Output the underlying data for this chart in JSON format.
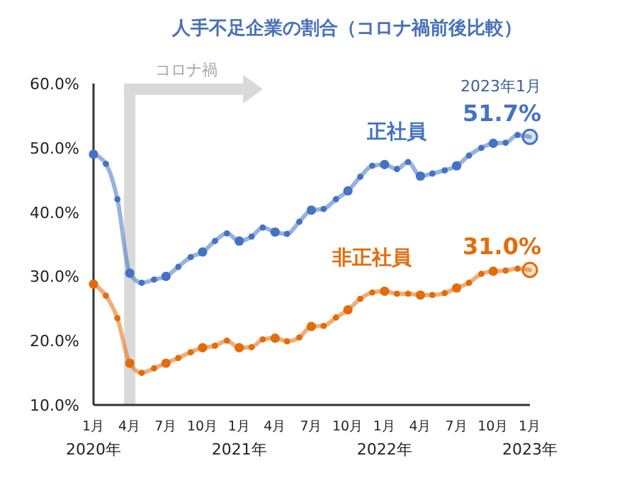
{
  "chart_data": {
    "type": "line",
    "title": "人手不足企業の割合（コロナ禍前後比較）",
    "x": [
      "2020-01",
      "2020-02",
      "2020-03",
      "2020-04",
      "2020-05",
      "2020-06",
      "2020-07",
      "2020-08",
      "2020-09",
      "2020-10",
      "2020-11",
      "2020-12",
      "2021-01",
      "2021-02",
      "2021-03",
      "2021-04",
      "2021-05",
      "2021-06",
      "2021-07",
      "2021-08",
      "2021-09",
      "2021-10",
      "2021-11",
      "2021-12",
      "2022-01",
      "2022-02",
      "2022-03",
      "2022-04",
      "2022-05",
      "2022-06",
      "2022-07",
      "2022-08",
      "2022-09",
      "2022-10",
      "2022-11",
      "2022-12",
      "2023-01"
    ],
    "series": [
      {
        "name": "正社員",
        "color": "#4472c4",
        "values": [
          49.0,
          47.5,
          42,
          30.5,
          29,
          29.5,
          30,
          31.5,
          33,
          33.8,
          35.5,
          36.7,
          35.5,
          36.2,
          37.6,
          36.9,
          36.6,
          38.5,
          40.3,
          40.5,
          42,
          43.3,
          45.5,
          47.2,
          47.4,
          46.7,
          47.8,
          45.6,
          46,
          46.5,
          47.2,
          48.8,
          50,
          50.7,
          50.8,
          52,
          51.7
        ],
        "value_labels": [
          null,
          null,
          null,
          null,
          null,
          null,
          null,
          null,
          null,
          null,
          null,
          null,
          null,
          null,
          null,
          null,
          null,
          null,
          null,
          null,
          null,
          null,
          null,
          null,
          null,
          null,
          null,
          null,
          null,
          null,
          null,
          null,
          null,
          null,
          null,
          null,
          "51.7%"
        ]
      },
      {
        "name": "非正社員",
        "color": "#e36c09",
        "values": [
          28.8,
          27,
          23.5,
          16.5,
          15,
          15.7,
          16.5,
          17.3,
          18.2,
          18.9,
          19.2,
          20,
          18.9,
          19,
          20.2,
          20.4,
          19.9,
          20.5,
          22.2,
          22.3,
          23.6,
          24.8,
          26.5,
          27.5,
          27.7,
          27.3,
          27.3,
          27.1,
          27.1,
          27.4,
          28.2,
          29,
          30.4,
          30.8,
          30.9,
          31.2,
          31.0
        ],
        "value_labels": [
          null,
          null,
          null,
          null,
          null,
          null,
          null,
          null,
          null,
          null,
          null,
          null,
          null,
          null,
          null,
          null,
          null,
          null,
          null,
          null,
          null,
          null,
          null,
          null,
          null,
          null,
          null,
          null,
          null,
          null,
          null,
          null,
          null,
          null,
          null,
          null,
          "31.0%"
        ]
      }
    ],
    "xlim": [
      "2020-01",
      "2023-01"
    ],
    "xticks": [
      {
        "value": "2020-01",
        "label": "1月\n2020年"
      },
      {
        "value": "2020-04",
        "label": "4月"
      },
      {
        "value": "2020-07",
        "label": "7月"
      },
      {
        "value": "2020-10",
        "label": "10月"
      },
      {
        "value": "2021-01",
        "label": "1月\n2021年"
      },
      {
        "value": "2021-04",
        "label": "4月"
      },
      {
        "value": "2021-07",
        "label": "7月"
      },
      {
        "value": "2021-10",
        "label": "10月"
      },
      {
        "value": "2022-01",
        "label": "1月\n2022年"
      },
      {
        "value": "2022-04",
        "label": "4月"
      },
      {
        "value": "2022-07",
        "label": "7月"
      },
      {
        "value": "2022-10",
        "label": "10月"
      },
      {
        "value": "2023-01",
        "label": "1月\n2023年"
      }
    ],
    "ylim": [
      10,
      60
    ],
    "yticks": [
      {
        "value": 10,
        "label": "10.0%"
      },
      {
        "value": 20,
        "label": "20.0%"
      },
      {
        "value": 30,
        "label": "30.0%"
      },
      {
        "value": 40,
        "label": "40.0%"
      },
      {
        "value": 50,
        "label": "50.0%"
      },
      {
        "value": 60,
        "label": "60.0%"
      }
    ],
    "ref_lines": [
      {
        "axis": "x",
        "value": "2020-04",
        "label": "コロナ禍",
        "color": "#d9d9d9"
      }
    ],
    "annotations": [
      {
        "text": "2023年1月",
        "x": "2023-01",
        "y": 51.7
      }
    ],
    "grid": false,
    "marker": "circle",
    "line_style": "solid"
  }
}
